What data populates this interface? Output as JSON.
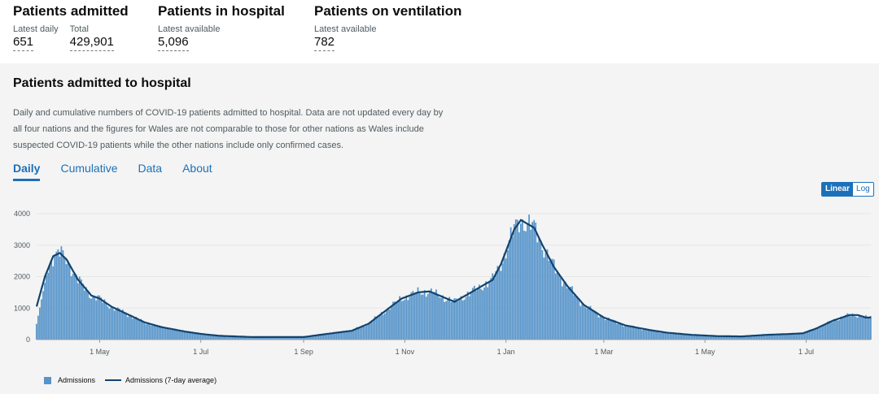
{
  "headline": {
    "admitted": {
      "title": "Patients admitted",
      "daily_label": "Latest daily",
      "daily_value": "651",
      "total_label": "Total",
      "total_value": "429,901"
    },
    "in_hospital": {
      "title": "Patients in hospital",
      "label": "Latest available",
      "value": "5,096"
    },
    "ventilation": {
      "title": "Patients on ventilation",
      "label": "Latest available",
      "value": "782"
    }
  },
  "card": {
    "title": "Patients admitted to hospital",
    "description": "Daily and cumulative numbers of COVID-19 patients admitted to hospital. Data are not updated every day by all four nations and the figures for Wales are not comparable to those for other nations as Wales include suspected COVID-19 patients while the other nations include only confirmed cases.",
    "tabs": [
      "Daily",
      "Cumulative",
      "Data",
      "About"
    ],
    "scale": {
      "linear": "Linear",
      "log": "Log"
    }
  },
  "colors": {
    "bar": "#5694ca",
    "line": "#12436d",
    "accent": "#1d70b8"
  },
  "chart_data": {
    "type": "bar",
    "title": "Patients admitted to hospital",
    "xlabel": "",
    "ylabel": "",
    "ylim": [
      0,
      4200
    ],
    "yticks": [
      0,
      1000,
      2000,
      3000,
      4000
    ],
    "xtick_labels": [
      "1 May",
      "1 Jul",
      "1 Sep",
      "1 Nov",
      "1 Jan",
      "1 Mar",
      "1 May",
      "1 Jul"
    ],
    "xtick_days": [
      38,
      99,
      161,
      222,
      283,
      342,
      403,
      464
    ],
    "x_start": "23 Mar 2020",
    "x_end": "2 Aug 2021",
    "legend": [
      "Admissions",
      "Admissions (7-day average)"
    ],
    "legend_position": "bottom-left",
    "series": [
      {
        "name": "Admissions (7-day average)",
        "anchors": [
          [
            0,
            1050
          ],
          [
            5,
            2000
          ],
          [
            10,
            2650
          ],
          [
            14,
            2750
          ],
          [
            18,
            2550
          ],
          [
            25,
            1900
          ],
          [
            33,
            1400
          ],
          [
            38,
            1300
          ],
          [
            45,
            1050
          ],
          [
            55,
            800
          ],
          [
            65,
            550
          ],
          [
            75,
            400
          ],
          [
            90,
            250
          ],
          [
            99,
            180
          ],
          [
            110,
            120
          ],
          [
            130,
            80
          ],
          [
            161,
            80
          ],
          [
            175,
            180
          ],
          [
            190,
            280
          ],
          [
            200,
            500
          ],
          [
            210,
            900
          ],
          [
            220,
            1300
          ],
          [
            230,
            1500
          ],
          [
            237,
            1530
          ],
          [
            245,
            1350
          ],
          [
            252,
            1200
          ],
          [
            262,
            1500
          ],
          [
            275,
            1900
          ],
          [
            280,
            2400
          ],
          [
            288,
            3500
          ],
          [
            292,
            3800
          ],
          [
            300,
            3550
          ],
          [
            305,
            3000
          ],
          [
            312,
            2300
          ],
          [
            320,
            1700
          ],
          [
            330,
            1100
          ],
          [
            342,
            700
          ],
          [
            355,
            450
          ],
          [
            370,
            300
          ],
          [
            380,
            220
          ],
          [
            395,
            150
          ],
          [
            410,
            110
          ],
          [
            425,
            100
          ],
          [
            440,
            150
          ],
          [
            455,
            180
          ],
          [
            462,
            200
          ],
          [
            470,
            350
          ],
          [
            480,
            600
          ],
          [
            490,
            780
          ],
          [
            495,
            780
          ],
          [
            500,
            700
          ],
          [
            503,
            700
          ]
        ]
      }
    ]
  }
}
